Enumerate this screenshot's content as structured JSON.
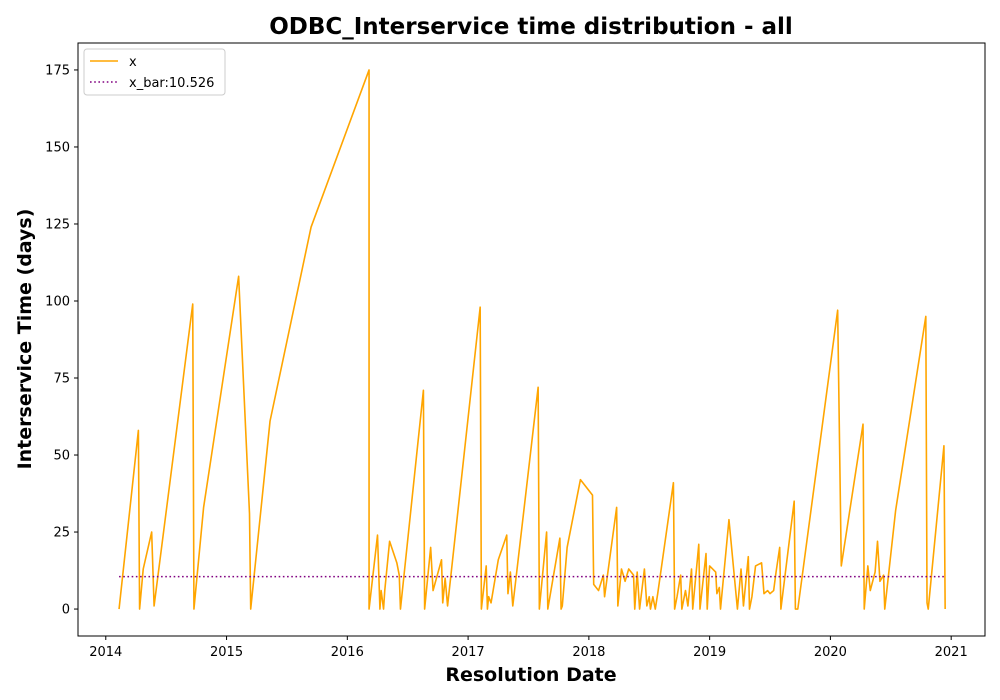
{
  "chart_data": {
    "type": "line",
    "title": "ODBC_Interservice time distribution - all",
    "xlabel": "Resolution Date",
    "ylabel": "Interservice Time (days)",
    "xlim": [
      2013.77,
      2021.28
    ],
    "ylim": [
      -8.75,
      183.75
    ],
    "x_ticks": [
      2014,
      2015,
      2016,
      2017,
      2018,
      2019,
      2020,
      2021
    ],
    "x_tick_labels": [
      "2014",
      "2015",
      "2016",
      "2017",
      "2018",
      "2019",
      "2020",
      "2021"
    ],
    "y_ticks": [
      0,
      25,
      50,
      75,
      100,
      125,
      150,
      175
    ],
    "y_tick_labels": [
      "0",
      "25",
      "50",
      "75",
      "100",
      "125",
      "150",
      "175"
    ],
    "grid": false,
    "legend": {
      "placement": "top-left",
      "entries": [
        "x",
        "x_bar:10.526"
      ]
    },
    "colors": {
      "x": "#ffa500",
      "x_bar": "#800080"
    },
    "series": [
      {
        "name": "x",
        "style": "solid",
        "points": [
          [
            2014.11,
            0
          ],
          [
            2014.27,
            58
          ],
          [
            2014.28,
            0
          ],
          [
            2014.31,
            13
          ],
          [
            2014.38,
            25
          ],
          [
            2014.4,
            1
          ],
          [
            2014.72,
            99
          ],
          [
            2014.73,
            0
          ],
          [
            2014.81,
            33
          ],
          [
            2015.1,
            108
          ],
          [
            2015.19,
            31
          ],
          [
            2015.2,
            0
          ],
          [
            2015.36,
            61
          ],
          [
            2015.7,
            124
          ],
          [
            2016.18,
            175
          ],
          [
            2016.18,
            0
          ],
          [
            2016.25,
            24
          ],
          [
            2016.27,
            0
          ],
          [
            2016.28,
            6
          ],
          [
            2016.3,
            0
          ],
          [
            2016.31,
            6
          ],
          [
            2016.35,
            22
          ],
          [
            2016.41,
            15
          ],
          [
            2016.43,
            11
          ],
          [
            2016.44,
            0
          ],
          [
            2016.63,
            71
          ],
          [
            2016.64,
            0
          ],
          [
            2016.69,
            20
          ],
          [
            2016.71,
            6
          ],
          [
            2016.78,
            16
          ],
          [
            2016.79,
            2
          ],
          [
            2016.81,
            10
          ],
          [
            2016.83,
            1
          ],
          [
            2017.1,
            98
          ],
          [
            2017.11,
            0
          ],
          [
            2017.15,
            14
          ],
          [
            2017.16,
            0
          ],
          [
            2017.17,
            4
          ],
          [
            2017.19,
            2
          ],
          [
            2017.25,
            16
          ],
          [
            2017.32,
            24
          ],
          [
            2017.33,
            5
          ],
          [
            2017.35,
            12
          ],
          [
            2017.37,
            1
          ],
          [
            2017.58,
            72
          ],
          [
            2017.59,
            0
          ],
          [
            2017.65,
            25
          ],
          [
            2017.66,
            0
          ],
          [
            2017.76,
            23
          ],
          [
            2017.77,
            0
          ],
          [
            2017.78,
            1
          ],
          [
            2017.82,
            20
          ],
          [
            2017.93,
            42
          ],
          [
            2018.03,
            37
          ],
          [
            2018.04,
            8
          ],
          [
            2018.08,
            6
          ],
          [
            2018.12,
            11
          ],
          [
            2018.13,
            4
          ],
          [
            2018.23,
            33
          ],
          [
            2018.24,
            1
          ],
          [
            2018.27,
            13
          ],
          [
            2018.3,
            9
          ],
          [
            2018.33,
            13
          ],
          [
            2018.37,
            11
          ],
          [
            2018.38,
            0
          ],
          [
            2018.4,
            12
          ],
          [
            2018.42,
            0
          ],
          [
            2018.46,
            13
          ],
          [
            2018.48,
            1
          ],
          [
            2018.5,
            4
          ],
          [
            2018.51,
            0
          ],
          [
            2018.53,
            4
          ],
          [
            2018.55,
            0
          ],
          [
            2018.57,
            5
          ],
          [
            2018.7,
            41
          ],
          [
            2018.71,
            0
          ],
          [
            2018.73,
            4
          ],
          [
            2018.76,
            11
          ],
          [
            2018.77,
            0
          ],
          [
            2018.8,
            6
          ],
          [
            2018.82,
            1
          ],
          [
            2018.85,
            13
          ],
          [
            2018.86,
            0
          ],
          [
            2018.91,
            21
          ],
          [
            2018.92,
            0
          ],
          [
            2018.97,
            18
          ],
          [
            2018.98,
            0
          ],
          [
            2019.0,
            14
          ],
          [
            2019.05,
            12
          ],
          [
            2019.06,
            5
          ],
          [
            2019.08,
            7
          ],
          [
            2019.09,
            0
          ],
          [
            2019.16,
            29
          ],
          [
            2019.23,
            0
          ],
          [
            2019.26,
            13
          ],
          [
            2019.28,
            1
          ],
          [
            2019.32,
            17
          ],
          [
            2019.33,
            0
          ],
          [
            2019.35,
            4
          ],
          [
            2019.38,
            14
          ],
          [
            2019.43,
            15
          ],
          [
            2019.45,
            5
          ],
          [
            2019.48,
            6
          ],
          [
            2019.5,
            5
          ],
          [
            2019.53,
            6
          ],
          [
            2019.55,
            12
          ],
          [
            2019.58,
            20
          ],
          [
            2019.59,
            0
          ],
          [
            2019.7,
            35
          ],
          [
            2019.71,
            0
          ],
          [
            2019.73,
            0
          ],
          [
            2020.06,
            97
          ],
          [
            2020.09,
            14
          ],
          [
            2020.27,
            60
          ],
          [
            2020.28,
            0
          ],
          [
            2020.31,
            14
          ],
          [
            2020.33,
            6
          ],
          [
            2020.37,
            12
          ],
          [
            2020.39,
            22
          ],
          [
            2020.41,
            9
          ],
          [
            2020.44,
            11
          ],
          [
            2020.45,
            0
          ],
          [
            2020.54,
            32
          ],
          [
            2020.79,
            95
          ],
          [
            2020.8,
            2
          ],
          [
            2020.81,
            0
          ],
          [
            2020.94,
            53
          ],
          [
            2020.95,
            0
          ]
        ]
      },
      {
        "name": "x_bar:10.526",
        "style": "dotted",
        "points": [
          [
            2014.11,
            10.526
          ],
          [
            2020.95,
            10.526
          ]
        ]
      }
    ]
  }
}
